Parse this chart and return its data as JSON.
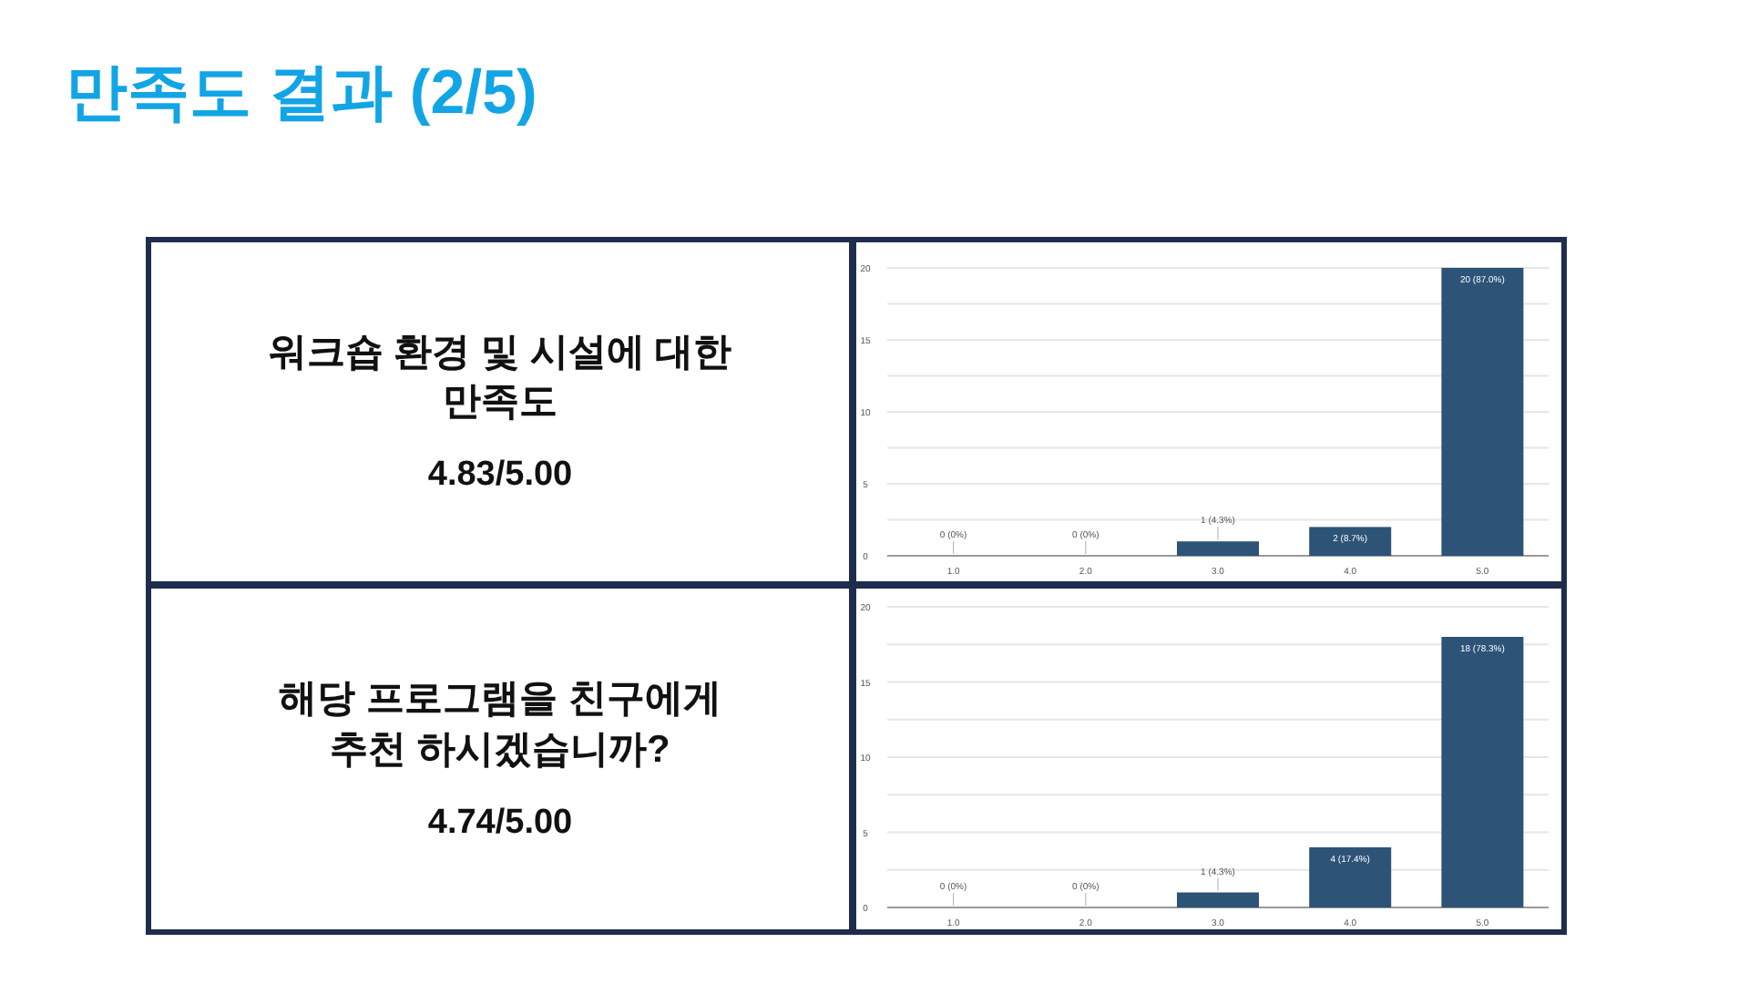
{
  "chart_data": [
    {
      "type": "other",
      "title": "만족도 결과 (2/5)"
    },
    {
      "type": "other",
      "subtitle": "워크숍 환경 및 시설에 대한 만족도",
      "annotations": [
        "4.83/5.00"
      ]
    },
    {
      "type": "bar",
      "categories": [
        "1.0",
        "2.0",
        "3.0",
        "4.0",
        "5.0"
      ],
      "values": [
        0,
        0,
        1,
        2,
        20
      ],
      "value_labels": [
        "0 (0%)",
        "0 (0%)",
        "1 (4.3%)",
        "2 (8.7%)",
        "20 (87.0%)"
      ],
      "color": "#2d5377",
      "ylim": [
        0,
        20
      ],
      "yticks": [
        0,
        {
          "value": 2.5,
          "label": null
        },
        5,
        {
          "value": 7.5,
          "label": null
        },
        10,
        {
          "value": 12.5,
          "label": null
        },
        15,
        {
          "value": 17.5,
          "label": null
        },
        20
      ],
      "grid": "y"
    },
    {
      "type": "other",
      "subtitle": "해당 프로그램을 친구에게 추천 하시겠습니까?",
      "annotations": [
        "4.74/5.00"
      ]
    },
    {
      "type": "bar",
      "categories": [
        "1.0",
        "2.0",
        "3.0",
        "4.0",
        "5.0"
      ],
      "values": [
        0,
        0,
        1,
        4,
        18
      ],
      "value_labels": [
        "0 (0%)",
        "0 (0%)",
        "1 (4.3%)",
        "4 (17.4%)",
        "18 (78.3%)"
      ],
      "color": "#2d5377",
      "ylim": [
        0,
        20
      ],
      "yticks": [
        0,
        {
          "value": 2.5,
          "label": null
        },
        5,
        {
          "value": 7.5,
          "label": null
        },
        10,
        {
          "value": 12.5,
          "label": null
        },
        15,
        {
          "value": 17.5,
          "label": null
        },
        20
      ],
      "grid": "y"
    }
  ]
}
